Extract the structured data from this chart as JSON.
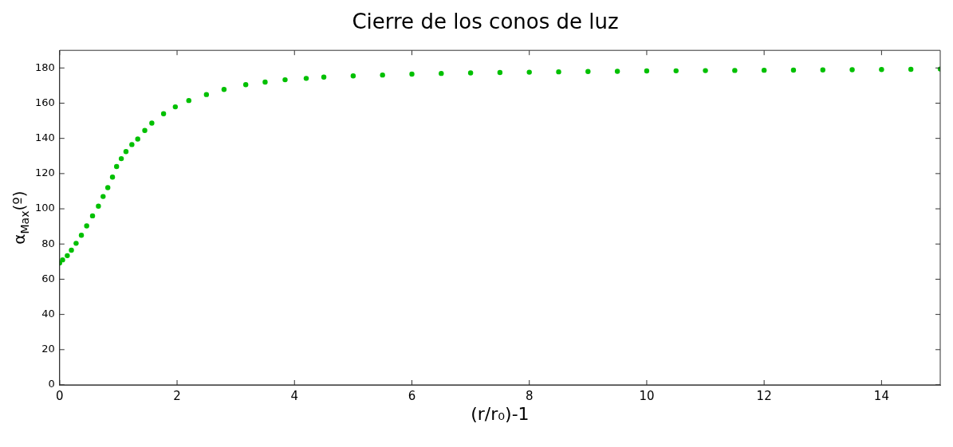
{
  "chart_data": {
    "type": "scatter",
    "title": "Cierre de los conos de luz",
    "xlabel": "(r/r₀)-1",
    "ylabel": "α$_{Max}$(º)",
    "x": [
      0,
      0.05,
      0.13,
      0.2,
      0.28,
      0.37,
      0.46,
      0.56,
      0.66,
      0.74,
      0.82,
      0.9,
      0.97,
      1.05,
      1.13,
      1.23,
      1.33,
      1.45,
      1.57,
      1.77,
      1.97,
      2.2,
      2.5,
      2.8,
      3.17,
      3.5,
      3.84,
      4.2,
      4.5,
      5,
      5.5,
      6,
      6.5,
      7,
      7.5,
      8,
      8.5,
      9,
      9.5,
      10,
      10.5,
      11,
      11.5,
      12,
      12.5,
      13,
      13.5,
      14,
      14.5,
      15
    ],
    "series": [
      {
        "color": "#00c000",
        "values": [
          69.2,
          71,
          73.4,
          76.5,
          80.4,
          85,
          90.3,
          96,
          101.5,
          107,
          112,
          118,
          124,
          128.5,
          132.5,
          136.5,
          139.6,
          144.5,
          148.7,
          154,
          157.9,
          161.5,
          164.9,
          167.8,
          170.5,
          172,
          173.3,
          174.1,
          174.8,
          175.5,
          176,
          176.5,
          176.9,
          177.2,
          177.4,
          177.6,
          177.8,
          178,
          178.1,
          178.3,
          178.4,
          178.5,
          178.6,
          178.7,
          178.8,
          178.9,
          179,
          179.1,
          179.2,
          179.4
        ]
      }
    ],
    "xlim": [
      0,
      15
    ],
    "xticks": [
      0,
      2,
      4,
      6,
      8,
      10,
      12,
      14
    ],
    "ylim": [
      0,
      190
    ],
    "yticks": [
      0,
      20,
      40,
      60,
      80,
      100,
      120,
      140,
      160,
      180
    ],
    "grid": false,
    "legend": false,
    "marker": "circle"
  }
}
